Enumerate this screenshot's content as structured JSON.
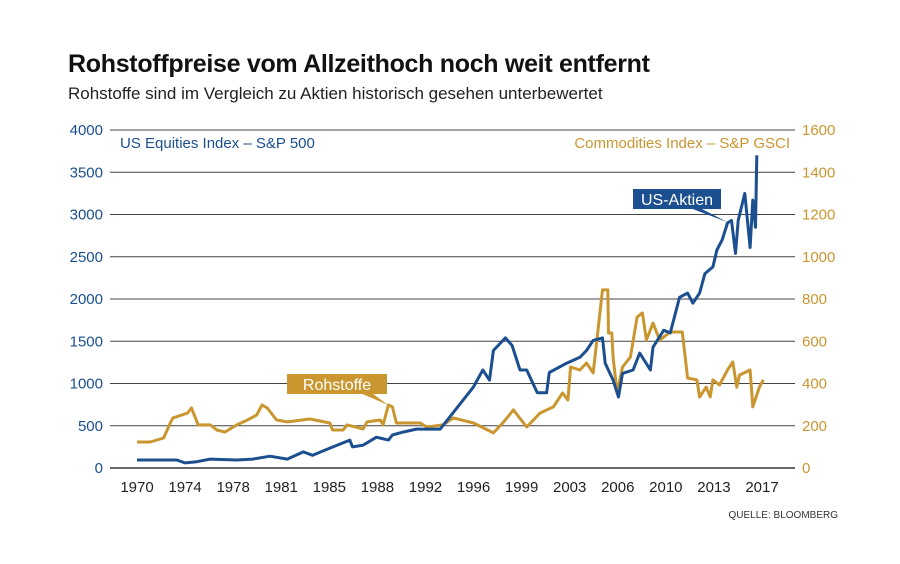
{
  "chart_data": {
    "type": "line",
    "title": "Rohstoffpreise vom Allzeithoch noch weit entfernt",
    "subtitle": "Rohstoffe sind im Vergleich zu Aktien historisch gesehen unterbewertet",
    "source": "QUELLE: BLOOMBERG",
    "grid": true,
    "x_ticks": [
      "1970",
      "1974",
      "1978",
      "1981",
      "1985",
      "1988",
      "1992",
      "1996",
      "1999",
      "2003",
      "2006",
      "2010",
      "2013",
      "2017"
    ],
    "y_left": {
      "label": "US Equities Index – S&P 500",
      "ylim": [
        0,
        4000
      ],
      "ticks": [
        0,
        500,
        1000,
        1500,
        2000,
        2500,
        3000,
        3500,
        4000
      ],
      "color": "#1b4f8f"
    },
    "y_right": {
      "label": "Commodities Index – S&P GSCI",
      "ylim": [
        0,
        1600
      ],
      "ticks": [
        0,
        200,
        400,
        600,
        800,
        1000,
        1200,
        1400,
        1600
      ],
      "color": "#c9962f"
    },
    "series": [
      {
        "name": "US Equities Index – S&P 500",
        "axis": "left",
        "callout": "US-Aktien",
        "color": "#1b4f8f",
        "x": [
          1970,
          1973,
          1973.6,
          1974.5,
          1975.5,
          1977.5,
          1978.7,
          1980,
          1981.3,
          1982.5,
          1983.2,
          1984.5,
          1986,
          1986.2,
          1987,
          1988,
          1988.9,
          1989.2,
          1990,
          1991,
          1992.8,
          1995.3,
          1996,
          1996.5,
          1996.8,
          1997.7,
          1998.2,
          1998.8,
          1999.3,
          2000.1,
          2000.8,
          2001,
          2002.3,
          2003.3,
          2003.8,
          2004.3,
          2005,
          2005.2,
          2005.8,
          2006.2,
          2006.5,
          2007.3,
          2007.8,
          2008.6,
          2008.8,
          2009.6,
          2010.1,
          2010.8,
          2011.4,
          2011.8,
          2012.3,
          2012.7,
          2013.3,
          2013.6,
          2014,
          2014.4,
          2014.7,
          2015,
          2015.2,
          2015.7,
          2016.1,
          2016.3,
          2016.5,
          2016.6
        ],
        "y": [
          95,
          95,
          60,
          75,
          105,
          95,
          105,
          140,
          105,
          190,
          150,
          235,
          330,
          250,
          270,
          365,
          330,
          390,
          425,
          460,
          460,
          960,
          1160,
          1040,
          1390,
          1540,
          1450,
          1160,
          1160,
          890,
          890,
          1130,
          1240,
          1310,
          1390,
          1510,
          1540,
          1240,
          1040,
          840,
          1120,
          1160,
          1360,
          1160,
          1430,
          1630,
          1600,
          2020,
          2070,
          1950,
          2070,
          2300,
          2380,
          2580,
          2700,
          2900,
          2930,
          2540,
          2930,
          3250,
          2610,
          3170,
          2850,
          3700
        ]
      },
      {
        "name": "Commodities Index – S&P GSCI",
        "axis": "right",
        "callout": "Rohstoffe",
        "color": "#c9962f",
        "x": [
          1970,
          1971,
          1972,
          1972.5,
          1972.7,
          1973.8,
          1974.1,
          1974.6,
          1975.5,
          1976,
          1976.6,
          1977.5,
          1978.3,
          1979,
          1979.4,
          1979.8,
          1980.5,
          1981.3,
          1983,
          1984.5,
          1984.7,
          1985.5,
          1985.8,
          1987,
          1987.3,
          1988.3,
          1988.5,
          1988.9,
          1989.2,
          1989.5,
          1991.3,
          1991.8,
          1993,
          1993.8,
          1995.3,
          1996.8,
          1997.5,
          1998.3,
          1999.3,
          2000.3,
          2001.3,
          2002,
          2002.4,
          2002.6,
          2003.3,
          2003.8,
          2004.3,
          2005,
          2005.4,
          2005.45,
          2005.7,
          2005.8,
          2006.1,
          2006.5,
          2007.1,
          2007.6,
          2008,
          2008.3,
          2008.8,
          2009.3,
          2010.1,
          2011,
          2011.4,
          2012.1,
          2012.3,
          2012.8,
          2013.1,
          2013.3,
          2013.8,
          2014.4,
          2014.8,
          2015.1,
          2015.3,
          2016.1,
          2016.3,
          2016.8,
          2017.1
        ],
        "y": [
          123,
          123,
          142,
          213,
          237,
          260,
          284,
          204,
          204,
          180,
          170,
          204,
          227,
          251,
          298,
          284,
          227,
          218,
          232,
          213,
          180,
          180,
          204,
          185,
          218,
          227,
          204,
          298,
          289,
          213,
          213,
          194,
          204,
          237,
          213,
          166,
          213,
          275,
          194,
          260,
          289,
          355,
          322,
          478,
          464,
          497,
          450,
          843,
          843,
          639,
          639,
          525,
          355,
          478,
          525,
          715,
          734,
          606,
          686,
          606,
          644,
          644,
          426,
          417,
          336,
          383,
          336,
          417,
          393,
          464,
          502,
          383,
          440,
          464,
          289,
          383,
          417
        ]
      }
    ]
  }
}
